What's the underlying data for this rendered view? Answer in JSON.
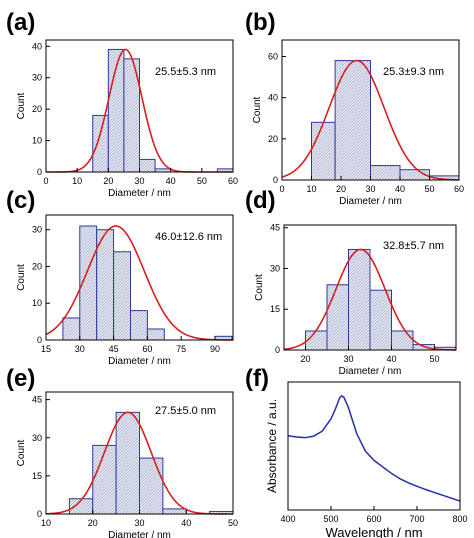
{
  "colors": {
    "bar_stroke": "#2b3a9c",
    "bar_fill": "#dfe3ee",
    "fit_curve": "#d62020",
    "spectrum": "#2430a8",
    "axis": "#000000"
  },
  "chart_data": [
    {
      "panel": "(a)",
      "type": "bar",
      "annotation": "25.5±5.3 nm",
      "xlabel": "Diameter / nm",
      "ylabel": "Count",
      "xlim": [
        0,
        60
      ],
      "ylim": [
        0,
        42
      ],
      "xticks": [
        "0",
        "10",
        "20",
        "30",
        "40",
        "50",
        "60"
      ],
      "xtick_values": [
        0,
        10,
        20,
        30,
        40,
        50,
        60
      ],
      "yticks": [
        "0",
        "10",
        "20",
        "30",
        "40"
      ],
      "ytick_values": [
        0,
        10,
        20,
        30,
        40
      ],
      "bins": [
        [
          15,
          20
        ],
        [
          20,
          25
        ],
        [
          25,
          30
        ],
        [
          30,
          35
        ],
        [
          35,
          40
        ],
        [
          55,
          60
        ]
      ],
      "values": [
        18,
        39,
        36,
        4,
        1,
        1
      ],
      "fit": {
        "mean": 25.5,
        "sd": 5.3,
        "peak": 39
      }
    },
    {
      "panel": "(b)",
      "type": "bar",
      "annotation": "25.3±9.3 nm",
      "xlabel": "Diameter / nm",
      "ylabel": "Count",
      "xlim": [
        0,
        60
      ],
      "ylim": [
        0,
        68
      ],
      "xticks": [
        "0",
        "10",
        "20",
        "30",
        "40",
        "50",
        "60"
      ],
      "xtick_values": [
        0,
        10,
        20,
        30,
        40,
        50,
        60
      ],
      "yticks": [
        "0",
        "20",
        "40",
        "60"
      ],
      "ytick_values": [
        0,
        20,
        40,
        60
      ],
      "bins": [
        [
          10,
          18
        ],
        [
          18,
          30
        ],
        [
          30,
          40
        ],
        [
          40,
          50
        ],
        [
          50,
          60
        ]
      ],
      "values": [
        28,
        58,
        7,
        5,
        2
      ],
      "fit": {
        "mean": 25.3,
        "sd": 9.3,
        "peak": 58
      }
    },
    {
      "panel": "(c)",
      "type": "bar",
      "annotation": "46.0±12.6 nm",
      "xlabel": "Diameter / nm",
      "ylabel": "Count",
      "xlim": [
        15,
        98
      ],
      "ylim": [
        0,
        34
      ],
      "xticks": [
        "15",
        "30",
        "45",
        "60",
        "75",
        "90"
      ],
      "xtick_values": [
        15,
        30,
        45,
        60,
        75,
        90
      ],
      "yticks": [
        "0",
        "10",
        "20",
        "30"
      ],
      "ytick_values": [
        0,
        10,
        20,
        30
      ],
      "bins": [
        [
          22.5,
          30
        ],
        [
          30,
          37.5
        ],
        [
          37.5,
          45
        ],
        [
          45,
          52.5
        ],
        [
          52.5,
          60
        ],
        [
          60,
          67.5
        ],
        [
          67.5,
          75
        ],
        [
          90,
          97.5
        ]
      ],
      "values": [
        6,
        31,
        30,
        24,
        8,
        3,
        0,
        1
      ],
      "fit": {
        "mean": 46.0,
        "sd": 12.6,
        "peak": 31
      }
    },
    {
      "panel": "(d)",
      "type": "bar",
      "annotation": "32.8±5.7 nm",
      "xlabel": "Diameter / nm",
      "ylabel": "Count",
      "xlim": [
        15,
        55
      ],
      "ylim": [
        0,
        46
      ],
      "xticks": [
        "20",
        "30",
        "40",
        "50"
      ],
      "xtick_values": [
        20,
        30,
        40,
        50
      ],
      "yticks": [
        "0",
        "15",
        "30",
        "45"
      ],
      "ytick_values": [
        0,
        15,
        30,
        45
      ],
      "bins": [
        [
          20,
          25
        ],
        [
          25,
          30
        ],
        [
          30,
          35
        ],
        [
          35,
          40
        ],
        [
          40,
          45
        ],
        [
          45,
          50
        ],
        [
          50,
          55
        ]
      ],
      "values": [
        7,
        24,
        37,
        22,
        7,
        2,
        1
      ],
      "fit": {
        "mean": 32.8,
        "sd": 5.7,
        "peak": 37
      }
    },
    {
      "panel": "(e)",
      "type": "bar",
      "annotation": "27.5±5.0 nm",
      "xlabel": "Diameter / nm",
      "ylabel": "Count",
      "xlim": [
        10,
        50
      ],
      "ylim": [
        0,
        48
      ],
      "xticks": [
        "10",
        "20",
        "30",
        "40",
        "50"
      ],
      "xtick_values": [
        10,
        20,
        30,
        40,
        50
      ],
      "yticks": [
        "0",
        "15",
        "30",
        "45"
      ],
      "ytick_values": [
        0,
        15,
        30,
        45
      ],
      "bins": [
        [
          15,
          20
        ],
        [
          20,
          25
        ],
        [
          25,
          30
        ],
        [
          30,
          35
        ],
        [
          35,
          40
        ],
        [
          45,
          50
        ]
      ],
      "values": [
        6,
        27,
        40,
        22,
        2,
        1
      ],
      "fit": {
        "mean": 27.5,
        "sd": 5.0,
        "peak": 40
      }
    },
    {
      "panel": "(f)",
      "type": "line",
      "xlabel": "Wavelength / nm",
      "ylabel": "Absorbance / a.u.",
      "xlim": [
        400,
        800
      ],
      "ylim": [
        0,
        0.4
      ],
      "xticks": [
        "400",
        "500",
        "600",
        "700",
        "800"
      ],
      "xtick_values": [
        400,
        500,
        600,
        700,
        800
      ],
      "x": [
        400,
        420,
        440,
        460,
        480,
        500,
        510,
        520,
        525,
        530,
        540,
        550,
        560,
        580,
        600,
        620,
        640,
        660,
        680,
        700,
        720,
        740,
        760,
        780,
        800
      ],
      "y": [
        0.232,
        0.228,
        0.226,
        0.231,
        0.247,
        0.285,
        0.315,
        0.35,
        0.357,
        0.352,
        0.322,
        0.28,
        0.238,
        0.184,
        0.155,
        0.135,
        0.115,
        0.098,
        0.085,
        0.074,
        0.064,
        0.055,
        0.046,
        0.037,
        0.028
      ]
    }
  ]
}
